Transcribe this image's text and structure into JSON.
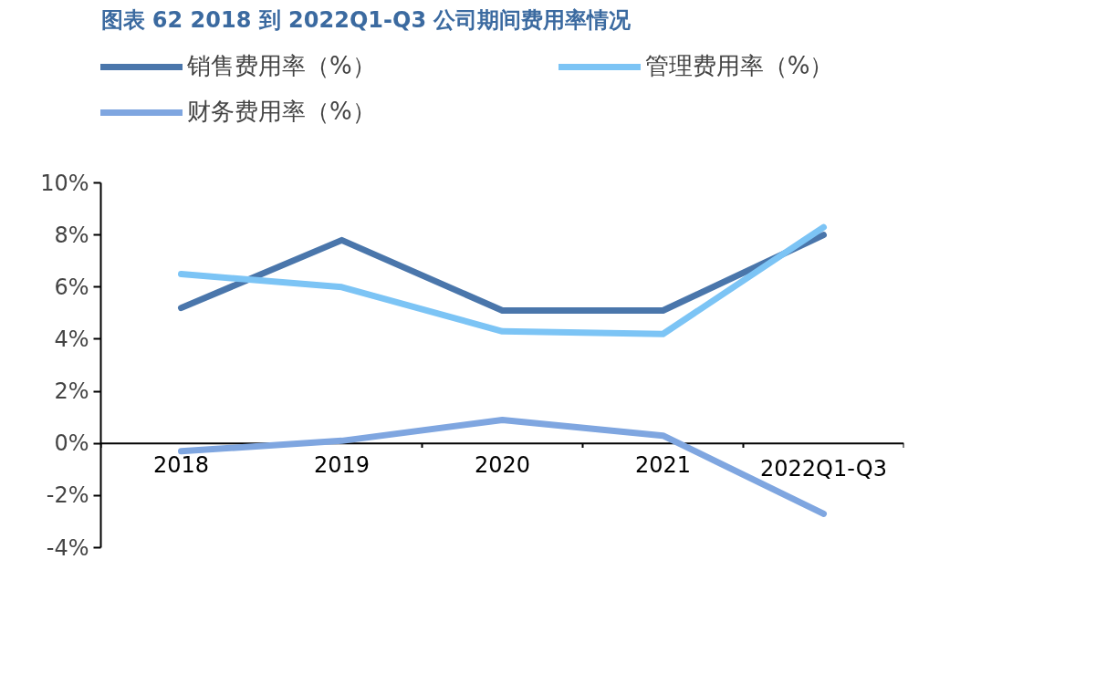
{
  "chart_data": {
    "type": "line",
    "title": "图表 62 2018 到 2022Q1-Q3 公司期间费用率情况",
    "categories": [
      "2018",
      "2019",
      "2020",
      "2021",
      "2022Q1-Q3"
    ],
    "series": [
      {
        "name": "销售费用率（%）",
        "color": "#4a76ab",
        "values": [
          5.2,
          7.8,
          5.1,
          5.1,
          8.0
        ]
      },
      {
        "name": "管理费用率（%）",
        "color": "#7cc4f5",
        "values": [
          6.5,
          6.0,
          4.3,
          4.2,
          8.3
        ]
      },
      {
        "name": "财务费用率（%）",
        "color": "#7fa6e0",
        "values": [
          -0.3,
          0.1,
          0.9,
          0.3,
          -2.7
        ]
      }
    ],
    "ylim": [
      -4,
      10
    ],
    "yticks": [
      {
        "value": -4,
        "label": "-4%"
      },
      {
        "value": -2,
        "label": "-2%"
      },
      {
        "value": 0,
        "label": "0%"
      },
      {
        "value": 2,
        "label": "2%"
      },
      {
        "value": 4,
        "label": "4%"
      },
      {
        "value": 6,
        "label": "6%"
      },
      {
        "value": 8,
        "label": "8%"
      },
      {
        "value": 10,
        "label": "10%"
      }
    ],
    "grid": false,
    "legend": "top",
    "line_style": "solid",
    "marker": "none"
  }
}
